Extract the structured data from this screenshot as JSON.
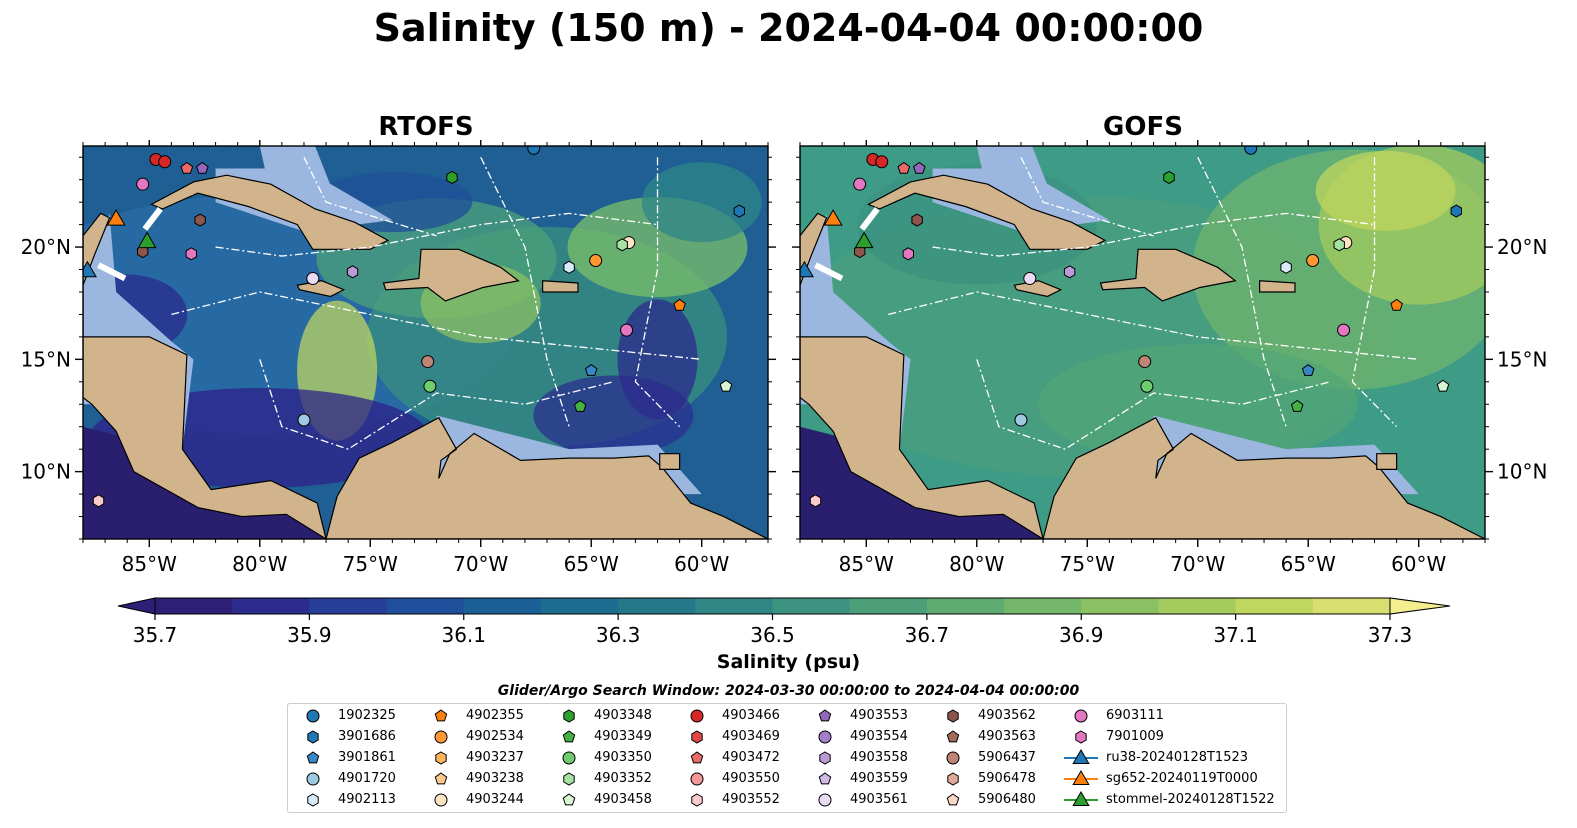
{
  "figure": {
    "title": "Salinity (150 m) - 2024-04-04 00:00:00",
    "colorbar_label": "Salinity (psu)",
    "search_window": "Glider/Argo Search Window: 2024-03-30 00:00:00 to 2024-04-04 00:00:00"
  },
  "colors": {
    "land": "#d2b48c",
    "shelf": "#9bb7e0",
    "colormap_start": "#2a1f6e",
    "colormap_end": "#f4ee8f"
  },
  "map": {
    "lon_range": [
      -88,
      -57
    ],
    "lat_range": [
      7,
      24.5
    ],
    "x_ticks": [
      "85°W",
      "80°W",
      "75°W",
      "70°W",
      "65°W",
      "60°W"
    ],
    "y_ticks": [
      "20°N",
      "15°N",
      "10°N"
    ]
  },
  "panels": [
    {
      "title": "RTOFS",
      "model": "rtofs"
    },
    {
      "title": "GOFS",
      "model": "gofs"
    }
  ],
  "colorbar": {
    "ticks": [
      "35.7",
      "35.9",
      "36.1",
      "36.3",
      "36.5",
      "36.7",
      "36.9",
      "37.1",
      "37.3"
    ],
    "min": 35.7,
    "max": 37.3,
    "step": 0.1,
    "extend": "both",
    "colors": [
      "#2e1f76",
      "#2b2b8c",
      "#273e99",
      "#1f4f9a",
      "#1a5f96",
      "#1c6c90",
      "#237989",
      "#2e8685",
      "#3b9380",
      "#4c9f79",
      "#5fab72",
      "#74b66a",
      "#8bc063",
      "#a4cb5e",
      "#bfd65f",
      "#d8df70",
      "#f4ee8f"
    ]
  },
  "legend": {
    "columns": [
      [
        {
          "label": "1902325",
          "marker": "circle",
          "color": "#1f77b4"
        },
        {
          "label": "3901686",
          "marker": "hexagon",
          "color": "#1f77b4"
        },
        {
          "label": "3901861",
          "marker": "pentagon",
          "color": "#3a87c8"
        },
        {
          "label": "4901720",
          "marker": "circle",
          "color": "#9ecae1"
        },
        {
          "label": "4902113",
          "marker": "hexagon",
          "color": "#d6ebf7"
        }
      ],
      [
        {
          "label": "4902355",
          "marker": "pentagon",
          "color": "#ff7f0e"
        },
        {
          "label": "4902534",
          "marker": "circle",
          "color": "#ff9833"
        },
        {
          "label": "4903237",
          "marker": "hexagon",
          "color": "#ffb45c"
        },
        {
          "label": "4903238",
          "marker": "pentagon",
          "color": "#ffc98a"
        },
        {
          "label": "4903244",
          "marker": "circle",
          "color": "#ffe4c4"
        }
      ],
      [
        {
          "label": "4903348",
          "marker": "hexagon",
          "color": "#2ca02c"
        },
        {
          "label": "4903349",
          "marker": "pentagon",
          "color": "#45b145"
        },
        {
          "label": "4903350",
          "marker": "circle",
          "color": "#6fcc6f"
        },
        {
          "label": "4903352",
          "marker": "hexagon",
          "color": "#a6e3a1"
        },
        {
          "label": "4903458",
          "marker": "pentagon",
          "color": "#d9f5d3"
        }
      ],
      [
        {
          "label": "4903466",
          "marker": "circle",
          "color": "#d62728"
        },
        {
          "label": "4903469",
          "marker": "hexagon",
          "color": "#e04646"
        },
        {
          "label": "4903472",
          "marker": "pentagon",
          "color": "#ea6a6a"
        },
        {
          "label": "4903550",
          "marker": "circle",
          "color": "#f49797"
        },
        {
          "label": "4903552",
          "marker": "hexagon",
          "color": "#fbcaca"
        }
      ],
      [
        {
          "label": "4903553",
          "marker": "pentagon",
          "color": "#9467bd"
        },
        {
          "label": "4903554",
          "marker": "circle",
          "color": "#a57ecb"
        },
        {
          "label": "4903558",
          "marker": "hexagon",
          "color": "#bb9ad9"
        },
        {
          "label": "4903559",
          "marker": "pentagon",
          "color": "#d2b9e7"
        },
        {
          "label": "4903561",
          "marker": "circle",
          "color": "#ebdcf6"
        }
      ],
      [
        {
          "label": "4903562",
          "marker": "hexagon",
          "color": "#8c564b"
        },
        {
          "label": "4903563",
          "marker": "pentagon",
          "color": "#a36a5c"
        },
        {
          "label": "5906437",
          "marker": "circle",
          "color": "#c08474"
        },
        {
          "label": "5906478",
          "marker": "hexagon",
          "color": "#e0a997"
        },
        {
          "label": "5906480",
          "marker": "pentagon",
          "color": "#fbd7c8"
        }
      ],
      [
        {
          "label": "6903111",
          "marker": "circle",
          "color": "#e377c2"
        },
        {
          "label": "7901009",
          "marker": "hexagon",
          "color": "#e377c2"
        },
        {
          "label": "ru38-20240128T1523",
          "marker": "triangle",
          "color": "#1f77b4"
        },
        {
          "label": "sg652-20240119T0000",
          "marker": "triangle",
          "color": "#ff7f0e"
        },
        {
          "label": "stommel-20240128T1522",
          "marker": "triangle",
          "color": "#2ca02c"
        }
      ]
    ]
  },
  "floats": [
    {
      "lon": -84.7,
      "lat": 23.9,
      "marker": "circle",
      "color": "#d62728"
    },
    {
      "lon": -84.3,
      "lat": 23.8,
      "marker": "circle",
      "color": "#d62728"
    },
    {
      "lon": -83.3,
      "lat": 23.5,
      "marker": "pentagon",
      "color": "#ea6a6a"
    },
    {
      "lon": -82.6,
      "lat": 23.5,
      "marker": "pentagon",
      "color": "#9467bd"
    },
    {
      "lon": -85.3,
      "lat": 22.8,
      "marker": "circle",
      "color": "#e377c2"
    },
    {
      "lon": -82.7,
      "lat": 21.2,
      "marker": "hexagon",
      "color": "#8c564b"
    },
    {
      "lon": -85.3,
      "lat": 19.8,
      "marker": "hexagon",
      "color": "#8c564b"
    },
    {
      "lon": -83.1,
      "lat": 19.7,
      "marker": "hexagon",
      "color": "#e377c2"
    },
    {
      "lon": -77.6,
      "lat": 18.6,
      "marker": "circle",
      "color": "#ebdcf6"
    },
    {
      "lon": -75.8,
      "lat": 18.9,
      "marker": "hexagon",
      "color": "#bb9ad9"
    },
    {
      "lon": -71.3,
      "lat": 23.1,
      "marker": "hexagon",
      "color": "#2ca02c"
    },
    {
      "lon": -67.6,
      "lat": 24.4,
      "marker": "circle",
      "color": "#1f77b4"
    },
    {
      "lon": -58.3,
      "lat": 21.6,
      "marker": "hexagon",
      "color": "#1f77b4"
    },
    {
      "lon": -63.3,
      "lat": 20.2,
      "marker": "circle",
      "color": "#ffe4c4"
    },
    {
      "lon": -63.6,
      "lat": 20.1,
      "marker": "hexagon",
      "color": "#a6e3a1"
    },
    {
      "lon": -66.0,
      "lat": 19.1,
      "marker": "hexagon",
      "color": "#d6ebf7"
    },
    {
      "lon": -64.8,
      "lat": 19.4,
      "marker": "circle",
      "color": "#ff9833"
    },
    {
      "lon": -61.0,
      "lat": 17.4,
      "marker": "pentagon",
      "color": "#ff7f0e"
    },
    {
      "lon": -63.4,
      "lat": 16.3,
      "marker": "circle",
      "color": "#e377c2"
    },
    {
      "lon": -72.4,
      "lat": 14.9,
      "marker": "circle",
      "color": "#c08474"
    },
    {
      "lon": -72.3,
      "lat": 13.8,
      "marker": "circle",
      "color": "#6fcc6f"
    },
    {
      "lon": -65.0,
      "lat": 14.5,
      "marker": "pentagon",
      "color": "#3a87c8"
    },
    {
      "lon": -65.5,
      "lat": 12.9,
      "marker": "pentagon",
      "color": "#45b145"
    },
    {
      "lon": -58.9,
      "lat": 13.8,
      "marker": "pentagon",
      "color": "#d9f5d3"
    },
    {
      "lon": -78.0,
      "lat": 12.3,
      "marker": "circle",
      "color": "#9ecae1"
    },
    {
      "lon": -87.3,
      "lat": 8.7,
      "marker": "hexagon",
      "color": "#fbcaca"
    }
  ],
  "gliders": [
    {
      "lon": -86.5,
      "lat": 21.2,
      "color": "#ff7f0e"
    },
    {
      "lon": -85.1,
      "lat": 20.2,
      "color": "#2ca02c"
    },
    {
      "lon": -87.8,
      "lat": 18.9,
      "color": "#1f77b4"
    }
  ]
}
